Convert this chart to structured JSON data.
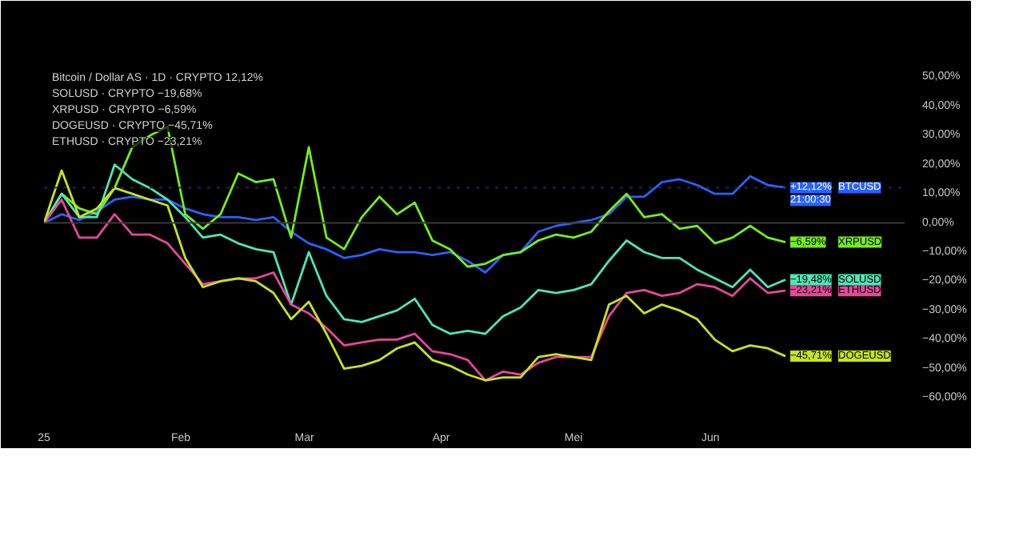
{
  "chart_data": {
    "type": "line",
    "x": [
      "2025-01-01",
      "2025-01-05",
      "2025-01-09",
      "2025-01-13",
      "2025-01-17",
      "2025-01-21",
      "2025-01-25",
      "2025-01-29",
      "2025-02-02",
      "2025-02-06",
      "2025-02-10",
      "2025-02-14",
      "2025-02-18",
      "2025-02-22",
      "2025-02-26",
      "2025-03-02",
      "2025-03-06",
      "2025-03-10",
      "2025-03-14",
      "2025-03-18",
      "2025-03-22",
      "2025-03-26",
      "2025-03-30",
      "2025-04-03",
      "2025-04-07",
      "2025-04-11",
      "2025-04-15",
      "2025-04-19",
      "2025-04-23",
      "2025-04-27",
      "2025-05-01",
      "2025-05-05",
      "2025-05-09",
      "2025-05-13",
      "2025-05-17",
      "2025-05-21",
      "2025-05-25",
      "2025-05-29",
      "2025-06-02",
      "2025-06-06",
      "2025-06-10",
      "2025-06-14",
      "2025-06-18"
    ],
    "series": [
      {
        "name": "BTCUSD",
        "color": "#2962ff",
        "values": [
          0,
          3,
          1,
          4,
          8,
          9,
          8,
          8,
          5,
          3,
          2,
          2,
          1,
          2,
          -3,
          -7,
          -9,
          -12,
          -11,
          -9,
          -10,
          -10,
          -11,
          -10,
          -13,
          -17,
          -11,
          -10,
          -3,
          -1,
          0,
          1,
          3,
          9,
          9,
          14,
          15,
          13,
          10,
          10,
          16,
          13,
          12.12
        ],
        "value_labels": [
          null,
          null,
          null,
          null,
          null,
          null,
          null,
          null,
          null,
          null,
          null,
          null,
          null,
          null,
          null,
          null,
          null,
          null,
          null,
          null,
          null,
          null,
          null,
          null,
          null,
          null,
          null,
          null,
          null,
          null,
          null,
          null,
          null,
          null,
          null,
          null,
          null,
          null,
          null,
          null,
          null,
          null,
          "+12,12%"
        ]
      },
      {
        "name": "XRPUSD",
        "color": "#76ee1a",
        "values": [
          0,
          10,
          5,
          3,
          12,
          26,
          30,
          33,
          3,
          -2,
          3,
          17,
          14,
          15,
          -5,
          26,
          -5,
          -9,
          2,
          9,
          3,
          7,
          -6,
          -9,
          -15,
          -14,
          -11,
          -10,
          -6,
          -4,
          -5,
          -3,
          4,
          10,
          2,
          3,
          -2,
          -1,
          -7,
          -5,
          -1,
          -5,
          -6.59
        ],
        "value_labels": [
          null,
          null,
          null,
          null,
          null,
          null,
          null,
          null,
          null,
          null,
          null,
          null,
          null,
          null,
          null,
          null,
          null,
          null,
          null,
          null,
          null,
          null,
          null,
          null,
          null,
          null,
          null,
          null,
          null,
          null,
          null,
          null,
          null,
          null,
          null,
          null,
          null,
          null,
          null,
          null,
          null,
          null,
          "−6,59%"
        ]
      },
      {
        "name": "SOLUSD",
        "color": "#4ee6b4",
        "values": [
          0,
          10,
          2,
          2,
          20,
          15,
          12,
          8,
          2,
          -5,
          -4,
          -7,
          -9,
          -10,
          -28,
          -10,
          -25,
          -33,
          -34,
          -32,
          -30,
          -26,
          -35,
          -38,
          -37,
          -38,
          -32,
          -29,
          -23,
          -24,
          -23,
          -21,
          -13,
          -6,
          -10,
          -12,
          -12,
          -16,
          -19,
          -22,
          -16,
          -22,
          -19.48
        ],
        "value_labels": [
          null,
          null,
          null,
          null,
          null,
          null,
          null,
          null,
          null,
          null,
          null,
          null,
          null,
          null,
          null,
          null,
          null,
          null,
          null,
          null,
          null,
          null,
          null,
          null,
          null,
          null,
          null,
          null,
          null,
          null,
          null,
          null,
          null,
          null,
          null,
          null,
          null,
          null,
          null,
          null,
          null,
          null,
          "−19,48%"
        ]
      },
      {
        "name": "ETHUSD",
        "color": "#e8479b",
        "values": [
          0,
          8,
          -5,
          -5,
          3,
          -4,
          -4,
          -7,
          -14,
          -21,
          -20,
          -19,
          -19,
          -17,
          -28,
          -31,
          -36,
          -42,
          -41,
          -40,
          -40,
          -38,
          -44,
          -45,
          -47,
          -54,
          -51,
          -52,
          -48,
          -46,
          -46,
          -46,
          -32,
          -24,
          -23,
          -25,
          -24,
          -21,
          -22,
          -25,
          -19,
          -24,
          -23.21
        ],
        "value_labels": [
          null,
          null,
          null,
          null,
          null,
          null,
          null,
          null,
          null,
          null,
          null,
          null,
          null,
          null,
          null,
          null,
          null,
          null,
          null,
          null,
          null,
          null,
          null,
          null,
          null,
          null,
          null,
          null,
          null,
          null,
          null,
          null,
          null,
          null,
          null,
          null,
          null,
          null,
          null,
          null,
          null,
          null,
          "−23,21%"
        ]
      },
      {
        "name": "DOGEUSD",
        "color": "#c6e41e",
        "values": [
          0,
          18,
          2,
          5,
          12,
          10,
          8,
          6,
          -12,
          -22,
          -20,
          -19,
          -20,
          -24,
          -33,
          -27,
          -38,
          -50,
          -49,
          -47,
          -43,
          -41,
          -47,
          -49,
          -52,
          -54,
          -53,
          -53,
          -46,
          -45,
          -46,
          -47,
          -28,
          -25,
          -31,
          -28,
          -30,
          -33,
          -40,
          -44,
          -42,
          -43,
          -45.71
        ],
        "value_labels": [
          null,
          null,
          null,
          null,
          null,
          null,
          null,
          null,
          null,
          null,
          null,
          null,
          null,
          null,
          null,
          null,
          null,
          null,
          null,
          null,
          null,
          null,
          null,
          null,
          null,
          null,
          null,
          null,
          null,
          null,
          null,
          null,
          null,
          null,
          null,
          null,
          null,
          null,
          null,
          null,
          null,
          null,
          "−45,71%"
        ]
      }
    ],
    "xlim": [
      "2025-01-01",
      "2025-07-15"
    ],
    "xticks": [
      {
        "value": "2025-01-01",
        "label": "25"
      },
      {
        "value": "2025-02-01",
        "label": "Feb"
      },
      {
        "value": "2025-03-01",
        "label": "Mar"
      },
      {
        "value": "2025-04-01",
        "label": "Apr"
      },
      {
        "value": "2025-05-01",
        "label": "Mei"
      },
      {
        "value": "2025-06-01",
        "label": "Jun"
      }
    ],
    "ylim": [
      -66,
      57
    ],
    "yticks": [
      {
        "value": -60,
        "label": "−60,00%"
      },
      {
        "value": -50,
        "label": "−50,00%"
      },
      {
        "value": -40,
        "label": "−40,00%"
      },
      {
        "value": -30,
        "label": "−30,00%"
      },
      {
        "value": -20,
        "label": "−20,00%"
      },
      {
        "value": -10,
        "label": "−10,00%"
      },
      {
        "value": 0,
        "label": "0,00%"
      },
      {
        "value": 10,
        "label": "10,00%"
      },
      {
        "value": 20,
        "label": "20,00%"
      },
      {
        "value": 30,
        "label": "30,00%"
      },
      {
        "value": 40,
        "label": "40,00%"
      },
      {
        "value": 50,
        "label": "50,00%"
      }
    ],
    "ref_lines": [
      {
        "axis": "y",
        "value": 0,
        "color": "#3a3a3a"
      },
      {
        "axis": "y",
        "value": 12.12,
        "color": "#1c2a55",
        "line_style": "dotted"
      }
    ],
    "grid": false,
    "legend": "right",
    "annotations": [
      "Bitcoin / Dollar AS · 1D · CRYPTO 12,12%",
      "SOLUSD · CRYPTO −19,68%",
      "XRPUSD · CRYPTO −6,59%",
      "DOGEUSD · CRYPTO −45,71%",
      "ETHUSD · CRYPTO −23,21%",
      "21:00:30"
    ]
  }
}
